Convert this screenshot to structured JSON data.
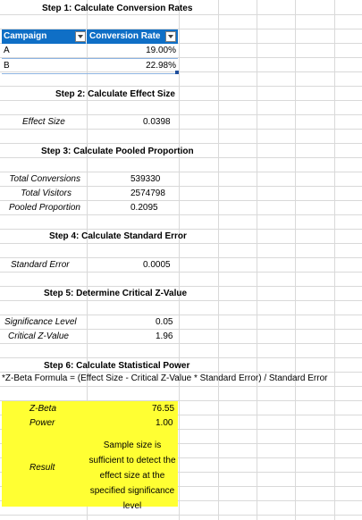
{
  "step1": {
    "title": "Step 1: Calculate Conversion Rates",
    "table": {
      "headers": [
        "Campaign",
        "Conversion Rate"
      ],
      "rows": [
        {
          "campaign": "A",
          "rate": "19.00%"
        },
        {
          "campaign": "B",
          "rate": "22.98%"
        }
      ]
    }
  },
  "step2": {
    "title": "Step 2: Calculate Effect Size",
    "effect_size_label": "Effect Size",
    "effect_size_value": "0.0398"
  },
  "step3": {
    "title": "Step 3: Calculate Pooled Proportion",
    "rows": [
      {
        "label": "Total Conversions",
        "value": "539330"
      },
      {
        "label": "Total Visitors",
        "value": "2574798"
      },
      {
        "label": "Pooled Proportion",
        "value": "0.2095"
      }
    ]
  },
  "step4": {
    "title": "Step 4: Calculate Standard Error",
    "label": "Standard Error",
    "value": "0.0005"
  },
  "step5": {
    "title": "Step 5: Determine Critical Z-Value",
    "rows": [
      {
        "label": "Significance Level",
        "value": "0.05"
      },
      {
        "label": "Critical Z-Value",
        "value": "1.96"
      }
    ]
  },
  "step6": {
    "title": "Step 6: Calculate Statistical Power",
    "formula": "*Z-Beta Formula = (Effect Size - Critical Z-Value * Standard Error) / Standard Error",
    "zbeta_label": "Z-Beta",
    "zbeta_value": "76.55",
    "power_label": "Power",
    "power_value": "1.00",
    "result_label": "Result",
    "result_value": "Sample size is sufficient to detect the effect size at the specified significance level"
  },
  "colors": {
    "table_header": "#0f6fc6",
    "highlight": "#ffff33",
    "gridline": "#d9d9d9"
  }
}
